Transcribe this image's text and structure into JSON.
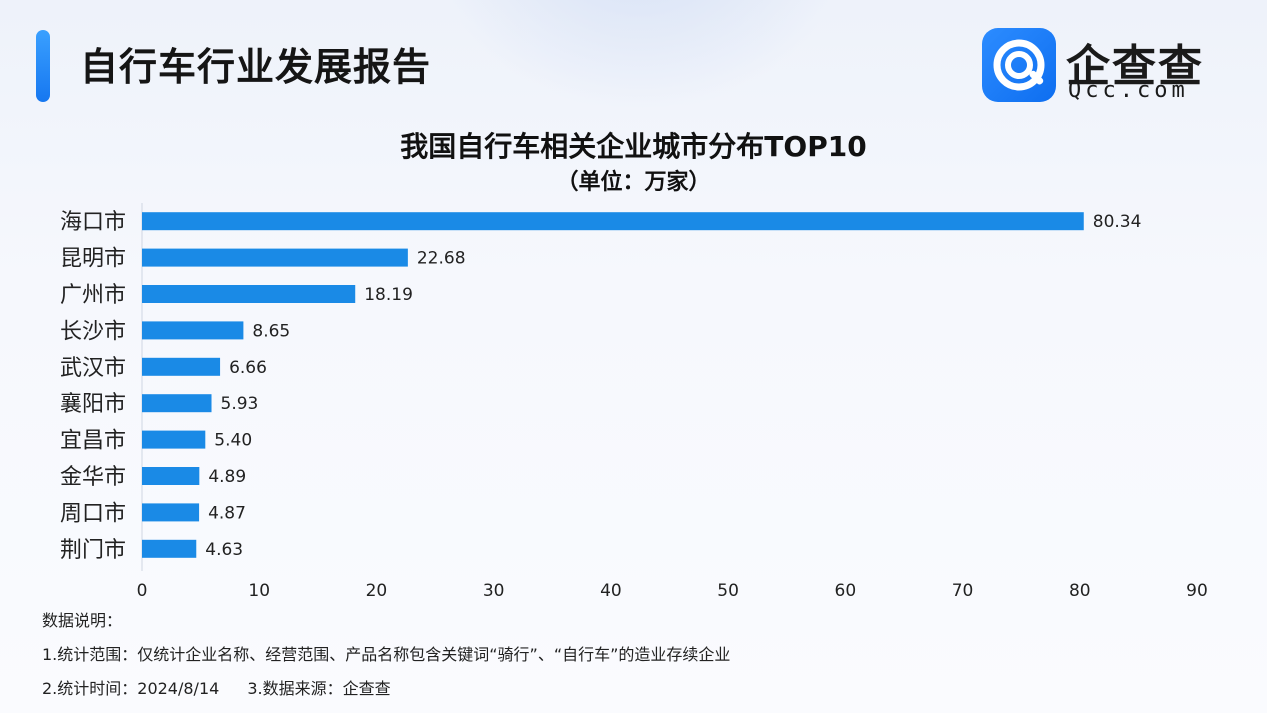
{
  "header": {
    "title": "自行车行业发展报告",
    "logo_text": "企查查",
    "logo_sub": "Qcc.com"
  },
  "chart_data": {
    "type": "bar",
    "orientation": "horizontal",
    "title": "我国自行车相关企业城市分布TOP10",
    "subtitle": "（单位：万家）",
    "categories": [
      "海口市",
      "昆明市",
      "广州市",
      "长沙市",
      "武汉市",
      "襄阳市",
      "宜昌市",
      "金华市",
      "周口市",
      "荆门市"
    ],
    "values": [
      80.34,
      22.68,
      18.19,
      8.65,
      6.66,
      5.93,
      5.4,
      4.89,
      4.87,
      4.63
    ],
    "value_labels": [
      "80.34",
      "22.68",
      "18.19",
      "8.65",
      "6.66",
      "5.93",
      "5.40",
      "4.89",
      "4.87",
      "4.63"
    ],
    "xlim": [
      0,
      90
    ],
    "xticks": [
      0,
      10,
      20,
      30,
      40,
      50,
      60,
      70,
      80,
      90
    ],
    "grid": false,
    "bar_color": "#1a8ae6"
  },
  "notes": {
    "heading": "数据说明：",
    "line1": "1.统计范围：仅统计企业名称、经营范围、产品名称包含关键词“骑行”、“自行车”的造业存续企业",
    "line2a": "2.统计时间：2024/8/14",
    "line2b": "3.数据来源：企查查"
  }
}
